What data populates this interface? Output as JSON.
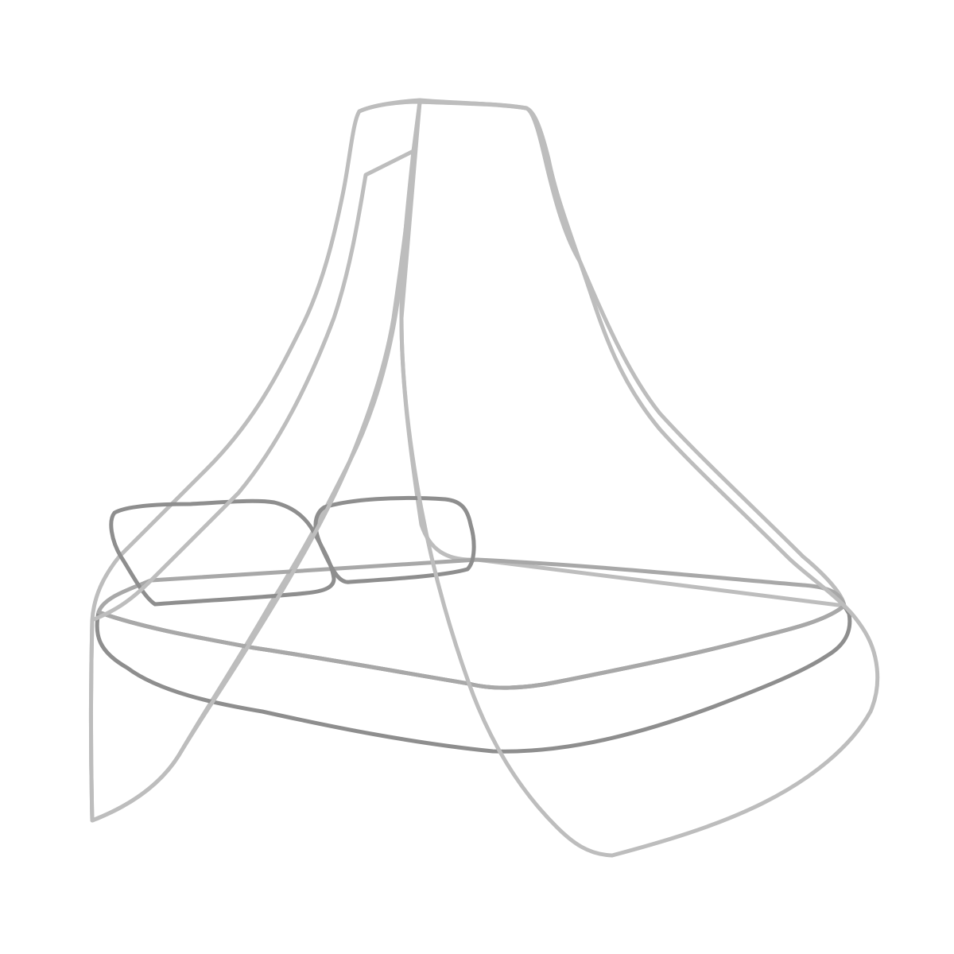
{
  "scene": {
    "subject": "canopy-bed-illustration",
    "palette": {
      "background": "#ffffff",
      "netFill": "#e6e6e6",
      "netStroke": "#bdbdbd",
      "mattressTopFill": "#e2e2e2",
      "mattressSideFill": "#d2d2d2",
      "mattressStroke": "#9a9a9a",
      "pillowFill": "#dcdcdc",
      "pillowStroke": "#8e8e8e"
    }
  }
}
